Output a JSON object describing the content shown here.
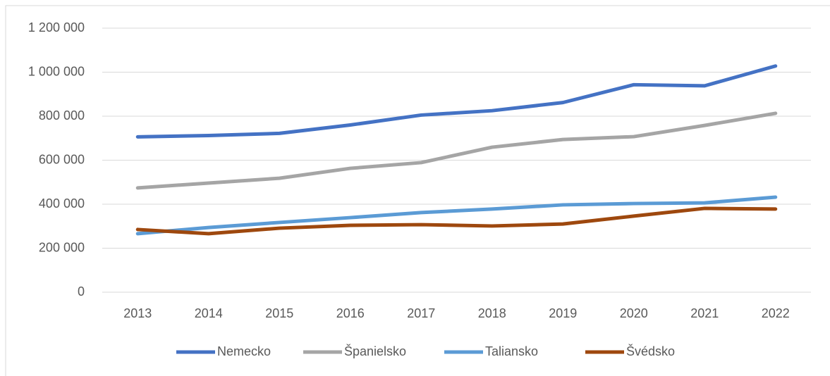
{
  "chart_data": {
    "type": "line",
    "categories": [
      "2013",
      "2014",
      "2015",
      "2016",
      "2017",
      "2018",
      "2019",
      "2020",
      "2021",
      "2022"
    ],
    "series": [
      {
        "name": "Nemecko",
        "color": "#4472c4",
        "values": [
          706000,
          712000,
          722000,
          760000,
          805000,
          825000,
          862000,
          943000,
          938000,
          1028000
        ]
      },
      {
        "name": "Španielsko",
        "color": "#a5a5a5",
        "values": [
          474000,
          496000,
          518000,
          563000,
          589000,
          659000,
          694000,
          707000,
          758000,
          813000
        ]
      },
      {
        "name": "Taliansko",
        "color": "#5b9bd5",
        "values": [
          266000,
          294000,
          317000,
          339000,
          362000,
          378000,
          397000,
          403000,
          406000,
          432000
        ]
      },
      {
        "name": "Švédsko",
        "color": "#9e480e",
        "values": [
          285000,
          266000,
          291000,
          304000,
          307000,
          301000,
          310000,
          346000,
          381000,
          378000
        ]
      }
    ],
    "ylim": [
      0,
      1200000
    ],
    "yticks": [
      0,
      {
        "value": 200000,
        "label": "200 000"
      },
      {
        "value": 400000,
        "label": "400 000"
      },
      {
        "value": 600000,
        "label": "600 000"
      },
      {
        "value": 800000,
        "label": "800 000"
      },
      {
        "value": 1000000,
        "label": "1 000 000"
      },
      {
        "value": 1200000,
        "label": "1 200 000"
      }
    ],
    "grid": true
  }
}
